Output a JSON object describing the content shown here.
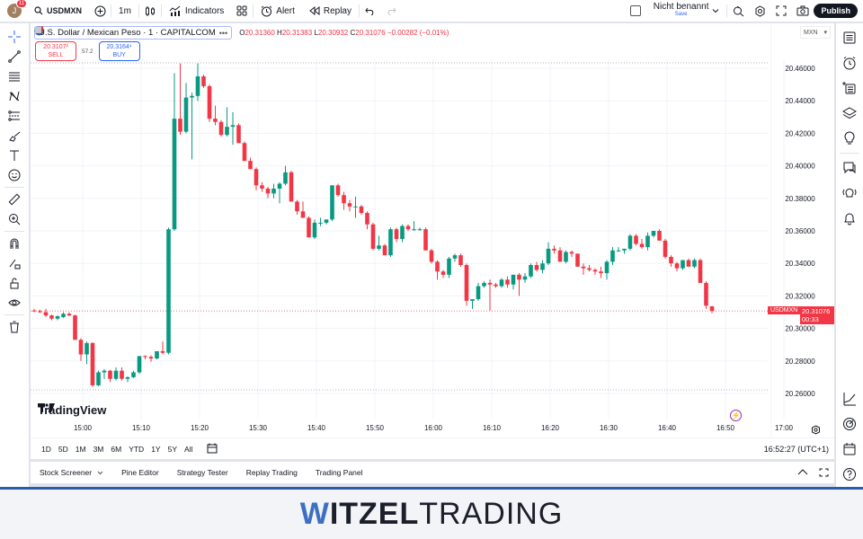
{
  "topbar": {
    "avatar_letter": "J",
    "notification_count": "11",
    "symbol": "USDMXN",
    "interval": "1m",
    "indicators_label": "Indicators",
    "alert_label": "Alert",
    "replay_label": "Replay",
    "layout_name": "Nicht benannt",
    "save_label": "Save",
    "publish_label": "Publish"
  },
  "legend": {
    "title": "U.S. Dollar / Mexican Peso · 1 · CAPITALCOM",
    "o_label": "O",
    "o": "20.31360",
    "h_label": "H",
    "h": "20.31383",
    "l_label": "L",
    "l": "20.30932",
    "c_label": "C",
    "c": "20.31076",
    "change": "−0.00282 (−0.01%)"
  },
  "trade": {
    "sell_price": "20.3107²",
    "sell_label": "SELL",
    "spread": "57.2",
    "buy_price": "20.3164⁴",
    "buy_label": "BUY"
  },
  "currency": "MXN",
  "last_price": {
    "symbol_tag": "USDMXN",
    "price": "20.31076",
    "countdown": "00:33"
  },
  "branding": {
    "logo_text": "TradingView"
  },
  "range_buttons": [
    "1D",
    "5D",
    "1M",
    "3M",
    "6M",
    "YTD",
    "1Y",
    "5Y",
    "All"
  ],
  "clock": "16:52:27 (UTC+1)",
  "bottom_tabs": [
    "Stock Screener",
    "Pine Editor",
    "Strategy Tester",
    "Replay Trading",
    "Trading Panel"
  ],
  "footer": {
    "w": "W",
    "itzel": "ITZEL",
    "trading": "TRADING"
  },
  "colors": {
    "up": "#089981",
    "down": "#f23645",
    "accent": "#2962ff",
    "grid": "#f0f3fa"
  },
  "chart_data": {
    "type": "candlestick",
    "title": "U.S. Dollar / Mexican Peso · 1 · CAPITALCOM",
    "y_ticks": [
      "20.46000",
      "20.44000",
      "20.42000",
      "20.40000",
      "20.38000",
      "20.36000",
      "20.34000",
      "20.32000",
      "20.30000",
      "20.28000",
      "20.26000"
    ],
    "x_ticks": [
      "15:00",
      "15:10",
      "15:20",
      "15:30",
      "15:40",
      "15:50",
      "16:00",
      "16:10",
      "16:20",
      "16:30",
      "16:40",
      "16:50",
      "17:00"
    ],
    "ylim": [
      20.255,
      20.468
    ],
    "candles": [
      [
        20.311,
        20.312,
        20.31,
        20.3105
      ],
      [
        20.3105,
        20.3115,
        20.3095,
        20.31
      ],
      [
        20.31,
        20.312,
        20.307,
        20.308
      ],
      [
        20.308,
        20.3085,
        20.305,
        20.306
      ],
      [
        20.306,
        20.308,
        20.305,
        20.3075
      ],
      [
        20.307,
        20.31,
        20.3065,
        20.309
      ],
      [
        20.309,
        20.31,
        20.3075,
        20.308
      ],
      [
        20.308,
        20.3085,
        20.293,
        20.293
      ],
      [
        20.293,
        20.294,
        20.28,
        20.284
      ],
      [
        20.284,
        20.292,
        20.278,
        20.291
      ],
      [
        20.291,
        20.2915,
        20.264,
        20.265
      ],
      [
        20.265,
        20.274,
        20.2645,
        20.273
      ],
      [
        20.273,
        20.275,
        20.269,
        20.274
      ],
      [
        20.274,
        20.2745,
        20.267,
        20.269
      ],
      [
        20.269,
        20.276,
        20.268,
        20.274
      ],
      [
        20.274,
        20.276,
        20.268,
        20.269
      ],
      [
        20.269,
        20.2705,
        20.267,
        20.27
      ],
      [
        20.27,
        20.274,
        20.2695,
        20.273
      ],
      [
        20.273,
        20.283,
        20.272,
        20.283
      ],
      [
        20.283,
        20.2835,
        20.281,
        20.2825
      ],
      [
        20.2825,
        20.2835,
        20.2795,
        20.2815
      ],
      [
        20.2815,
        20.286,
        20.281,
        20.286
      ],
      [
        20.286,
        20.292,
        20.284,
        20.285
      ],
      [
        20.285,
        20.362,
        20.284,
        20.361
      ],
      [
        20.361,
        20.457,
        20.36,
        20.429
      ],
      [
        20.429,
        20.463,
        20.419,
        20.421
      ],
      [
        20.421,
        20.451,
        20.42,
        20.442
      ],
      [
        20.442,
        20.445,
        20.404,
        20.443
      ],
      [
        20.443,
        20.463,
        20.44,
        20.455
      ],
      [
        20.455,
        20.456,
        20.448,
        20.449
      ],
      [
        20.449,
        20.45,
        20.427,
        20.429
      ],
      [
        20.429,
        20.437,
        20.425,
        20.427
      ],
      [
        20.427,
        20.428,
        20.418,
        20.419
      ],
      [
        20.419,
        20.436,
        20.418,
        20.424
      ],
      [
        20.424,
        20.433,
        20.413,
        20.425
      ],
      [
        20.425,
        20.426,
        20.415,
        20.414
      ],
      [
        20.414,
        20.415,
        20.404,
        20.403
      ],
      [
        20.403,
        20.405,
        20.398,
        20.398
      ],
      [
        20.398,
        20.399,
        20.385,
        20.388
      ],
      [
        20.388,
        20.39,
        20.384,
        20.386
      ],
      [
        20.386,
        20.387,
        20.38,
        20.383
      ],
      [
        20.383,
        20.389,
        20.38,
        20.386
      ],
      [
        20.386,
        20.39,
        20.377,
        20.389
      ],
      [
        20.389,
        20.4,
        20.388,
        20.396
      ],
      [
        20.396,
        20.397,
        20.378,
        20.378
      ],
      [
        20.378,
        20.379,
        20.37,
        20.372
      ],
      [
        20.372,
        20.378,
        20.37,
        20.368
      ],
      [
        20.368,
        20.369,
        20.356,
        20.356
      ],
      [
        20.356,
        20.367,
        20.355,
        20.365
      ],
      [
        20.365,
        20.368,
        20.363,
        20.365
      ],
      [
        20.365,
        20.367,
        20.364,
        20.367
      ],
      [
        20.367,
        20.388,
        20.366,
        20.388
      ],
      [
        20.388,
        20.389,
        20.381,
        20.382
      ],
      [
        20.382,
        20.384,
        20.373,
        20.377
      ],
      [
        20.377,
        20.379,
        20.372,
        20.375
      ],
      [
        20.375,
        20.381,
        20.368,
        20.375
      ],
      [
        20.375,
        20.376,
        20.37,
        20.371
      ],
      [
        20.371,
        20.372,
        20.361,
        20.364
      ],
      [
        20.364,
        20.365,
        20.348,
        20.349
      ],
      [
        20.349,
        20.357,
        20.348,
        20.351
      ],
      [
        20.351,
        20.352,
        20.348,
        20.345
      ],
      [
        20.345,
        20.362,
        20.344,
        20.361
      ],
      [
        20.361,
        20.362,
        20.353,
        20.355
      ],
      [
        20.355,
        20.364,
        20.353,
        20.363
      ],
      [
        20.363,
        20.364,
        20.36,
        20.361
      ],
      [
        20.361,
        20.366,
        20.36,
        20.361
      ],
      [
        20.361,
        20.362,
        20.36,
        20.361
      ],
      [
        20.361,
        20.362,
        20.348,
        20.348
      ],
      [
        20.348,
        20.349,
        20.34,
        20.341
      ],
      [
        20.341,
        20.342,
        20.33,
        20.335
      ],
      [
        20.335,
        20.336,
        20.331,
        20.333
      ],
      [
        20.333,
        20.344,
        20.331,
        20.343
      ],
      [
        20.343,
        20.346,
        20.341,
        20.345
      ],
      [
        20.345,
        20.346,
        20.338,
        20.339
      ],
      [
        20.339,
        20.34,
        20.314,
        20.317
      ],
      [
        20.317,
        20.318,
        20.312,
        20.318
      ],
      [
        20.318,
        20.328,
        20.317,
        20.326
      ],
      [
        20.326,
        20.329,
        20.325,
        20.328
      ],
      [
        20.328,
        20.33,
        20.311,
        20.327
      ],
      [
        20.327,
        20.328,
        20.325,
        20.326
      ],
      [
        20.326,
        20.331,
        20.325,
        20.33
      ],
      [
        20.33,
        20.332,
        20.325,
        20.327
      ],
      [
        20.327,
        20.333,
        20.324,
        20.333
      ],
      [
        20.333,
        20.334,
        20.32,
        20.33
      ],
      [
        20.33,
        20.334,
        20.328,
        20.332
      ],
      [
        20.332,
        20.34,
        20.331,
        20.339
      ],
      [
        20.339,
        20.341,
        20.335,
        20.336
      ],
      [
        20.336,
        20.342,
        20.334,
        20.34
      ],
      [
        20.34,
        20.353,
        20.339,
        20.349
      ],
      [
        20.349,
        20.351,
        20.346,
        20.348
      ],
      [
        20.348,
        20.35,
        20.343,
        20.341
      ],
      [
        20.341,
        20.348,
        20.34,
        20.347
      ],
      [
        20.347,
        20.348,
        20.344,
        20.346
      ],
      [
        20.346,
        20.342,
        20.338,
        20.338
      ],
      [
        20.338,
        20.34,
        20.333,
        20.337
      ],
      [
        20.337,
        20.339,
        20.335,
        20.336
      ],
      [
        20.336,
        20.337,
        20.333,
        20.335
      ],
      [
        20.335,
        20.338,
        20.331,
        20.334
      ],
      [
        20.334,
        20.342,
        20.33,
        20.341
      ],
      [
        20.341,
        20.35,
        20.339,
        20.348
      ],
      [
        20.348,
        20.35,
        20.347,
        20.348
      ],
      [
        20.348,
        20.349,
        20.346,
        20.349
      ],
      [
        20.349,
        20.358,
        20.348,
        20.357
      ],
      [
        20.357,
        20.358,
        20.351,
        20.352
      ],
      [
        20.352,
        20.355,
        20.349,
        20.35
      ],
      [
        20.35,
        20.359,
        20.348,
        20.357
      ],
      [
        20.357,
        20.36,
        20.356,
        20.36
      ],
      [
        20.36,
        20.361,
        20.354,
        20.354
      ],
      [
        20.354,
        20.355,
        20.343,
        20.344
      ],
      [
        20.344,
        20.345,
        20.338,
        20.34
      ],
      [
        20.34,
        20.341,
        20.335,
        20.337
      ],
      [
        20.337,
        20.342,
        20.336,
        20.342
      ],
      [
        20.342,
        20.343,
        20.338,
        20.338
      ],
      [
        20.338,
        20.343,
        20.337,
        20.342
      ],
      [
        20.342,
        20.343,
        20.328,
        20.328
      ],
      [
        20.328,
        20.329,
        20.312,
        20.314
      ],
      [
        20.3136,
        20.3138,
        20.3093,
        20.3108
      ]
    ]
  }
}
